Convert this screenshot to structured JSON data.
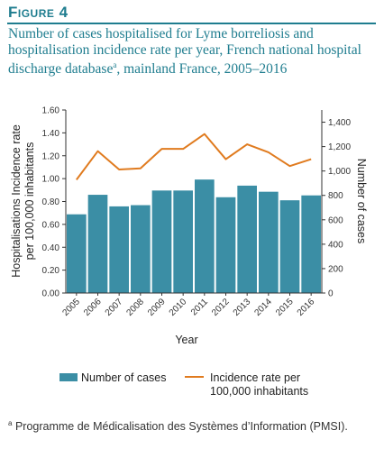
{
  "figure": {
    "label": "Figure 4",
    "title": "Number of cases hospitalised for Lyme borreliosis and hospitalisation incidence rate per year, French national hospital discharge database",
    "title_note_marker": "a",
    "title_suffix": ", mainland France, 2005–2016"
  },
  "footnote": {
    "marker": "a",
    "text": "Programme de Médicalisation des Systèmes d’Information (PMSI)."
  },
  "colors": {
    "bar": "#3b8ea5",
    "line": "#e07b1f",
    "accent": "#1f7d8f"
  },
  "chart_data": {
    "type": "bar",
    "categories": [
      "2005",
      "2006",
      "2007",
      "2008",
      "2009",
      "2010",
      "2011",
      "2012",
      "2013",
      "2014",
      "2015",
      "2016"
    ],
    "xlabel": "Year",
    "ylabel_left_line1": "Hospitalisations  Incidence rate",
    "ylabel_left_line2": "per 100,000 inhabitants",
    "ylabel_right": "Number of cases",
    "ylim_left": [
      0,
      1.6
    ],
    "yticks_left": [
      "0.00",
      "0.20",
      "0.40",
      "0.60",
      "0.80",
      "1.00",
      "1.20",
      "1.40",
      "1.60"
    ],
    "ylim_right": [
      0,
      1500
    ],
    "yticks_right": [
      "0",
      "200",
      "400",
      "600",
      "800",
      "1,000",
      "1,200",
      "1,400"
    ],
    "series": [
      {
        "name": "Number of cases",
        "type": "bar",
        "axis": "right",
        "values": [
          645,
          805,
          710,
          720,
          840,
          840,
          930,
          785,
          880,
          830,
          760,
          800
        ]
      },
      {
        "name": "Incidence rate per 100,000 inhabitants",
        "type": "line",
        "axis": "left",
        "values": [
          0.99,
          1.24,
          1.08,
          1.09,
          1.26,
          1.26,
          1.39,
          1.17,
          1.3,
          1.23,
          1.11,
          1.17
        ]
      }
    ],
    "legend": {
      "bar_label": "Number of cases",
      "line_label_1": "Incidence rate per",
      "line_label_2": "100,000 inhabitants",
      "placement": "bottom"
    },
    "grid": false
  }
}
